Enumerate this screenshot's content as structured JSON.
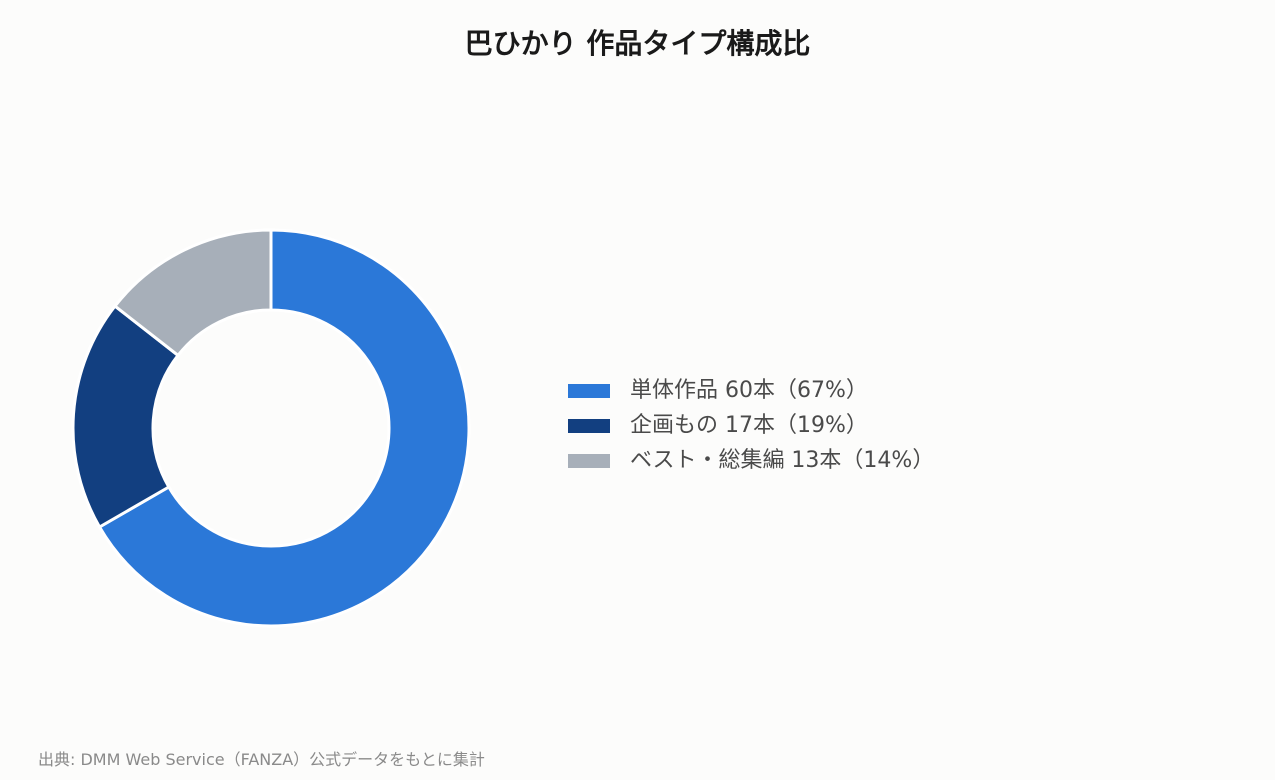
{
  "chart_data": {
    "type": "pie",
    "donut": true,
    "title": "巴ひかり 作品タイプ構成比",
    "categories": [
      "単体作品",
      "企画もの",
      "ベスト・総集編"
    ],
    "values": [
      60,
      17,
      13
    ],
    "percents": [
      67,
      19,
      14
    ],
    "colors": [
      "#2b78d8",
      "#123f80",
      "#a7afb9"
    ],
    "legend_labels": [
      "単体作品 60本（67%）",
      "企画もの 17本（19%）",
      "ベスト・総集編 13本（14%）"
    ],
    "legend_position": "right"
  },
  "source": "出典: DMM Web Service（FANZA）公式データをもとに集計"
}
